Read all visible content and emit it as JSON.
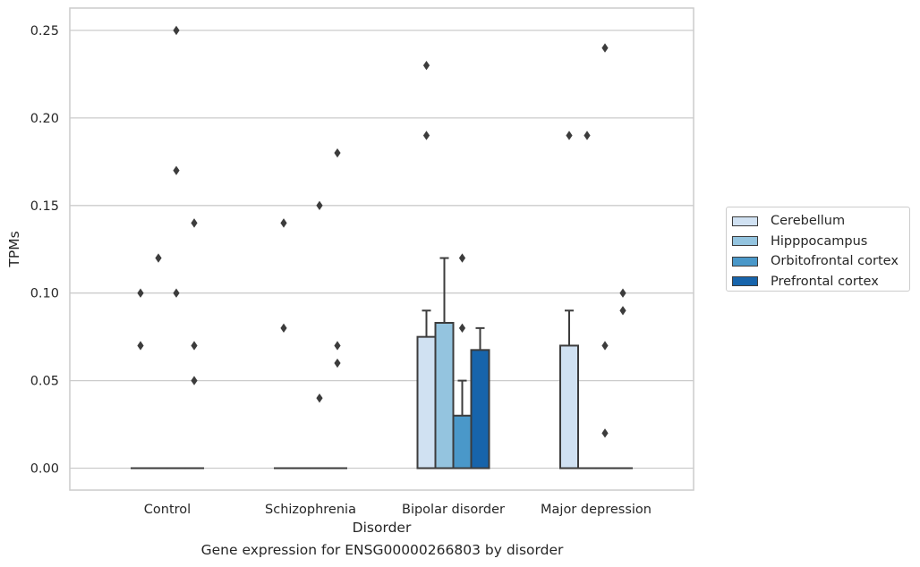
{
  "chart_data": {
    "type": "bar",
    "title": "",
    "caption": "Gene expression for ENSG00000266803 by disorder",
    "xlabel": "Disorder",
    "ylabel": "TPMs",
    "ylim": [
      -0.012,
      0.262
    ],
    "yticks": [
      "0.00",
      "0.05",
      "0.10",
      "0.15",
      "0.20",
      "0.25"
    ],
    "grid": "horizontal",
    "legend_position": "right",
    "categories": [
      "Control",
      "Schizophrenia",
      "Bipolar disorder",
      "Major depression"
    ],
    "series": [
      {
        "name": "Cerebellum",
        "color": "#d0e1f2",
        "values": [
          0.0,
          0.0,
          0.075,
          0.07
        ],
        "error_upper": [
          null,
          null,
          0.09,
          0.09
        ]
      },
      {
        "name": "Hipppocampus",
        "color": "#94c4df",
        "values": [
          0.0,
          0.0,
          0.083,
          0.0
        ],
        "error_upper": [
          null,
          null,
          0.12,
          null
        ]
      },
      {
        "name": "Orbitofrontal cortex",
        "color": "#4a98c9",
        "values": [
          0.0,
          0.0,
          0.03,
          0.0
        ],
        "error_upper": [
          null,
          null,
          0.05,
          null
        ]
      },
      {
        "name": "Prefrontal cortex",
        "color": "#1764ab",
        "values": [
          0.0,
          0.0,
          0.0675,
          0.0
        ],
        "error_upper": [
          null,
          null,
          0.08,
          null
        ]
      }
    ],
    "outliers": [
      {
        "category": 0,
        "series": 0,
        "y": 0.07
      },
      {
        "category": 0,
        "series": 0,
        "y": 0.1
      },
      {
        "category": 0,
        "series": 1,
        "y": 0.12
      },
      {
        "category": 0,
        "series": 2,
        "y": 0.25
      },
      {
        "category": 0,
        "series": 2,
        "y": 0.17
      },
      {
        "category": 0,
        "series": 2,
        "y": 0.1
      },
      {
        "category": 0,
        "series": 3,
        "y": 0.14
      },
      {
        "category": 0,
        "series": 3,
        "y": 0.07
      },
      {
        "category": 0,
        "series": 3,
        "y": 0.05
      },
      {
        "category": 1,
        "series": 0,
        "y": 0.14
      },
      {
        "category": 1,
        "series": 0,
        "y": 0.08
      },
      {
        "category": 1,
        "series": 2,
        "y": 0.15
      },
      {
        "category": 1,
        "series": 2,
        "y": 0.04
      },
      {
        "category": 1,
        "series": 3,
        "y": 0.18
      },
      {
        "category": 1,
        "series": 3,
        "y": 0.07
      },
      {
        "category": 1,
        "series": 3,
        "y": 0.06
      },
      {
        "category": 2,
        "series": 0,
        "y": 0.23
      },
      {
        "category": 2,
        "series": 0,
        "y": 0.19
      },
      {
        "category": 2,
        "series": 2,
        "y": 0.12
      },
      {
        "category": 2,
        "series": 2,
        "y": 0.08
      },
      {
        "category": 3,
        "series": 0,
        "y": 0.19
      },
      {
        "category": 3,
        "series": 1,
        "y": 0.19
      },
      {
        "category": 3,
        "series": 2,
        "y": 0.24
      },
      {
        "category": 3,
        "series": 2,
        "y": 0.07
      },
      {
        "category": 3,
        "series": 2,
        "y": 0.02
      },
      {
        "category": 3,
        "series": 3,
        "y": 0.1
      },
      {
        "category": 3,
        "series": 3,
        "y": 0.09
      }
    ]
  }
}
